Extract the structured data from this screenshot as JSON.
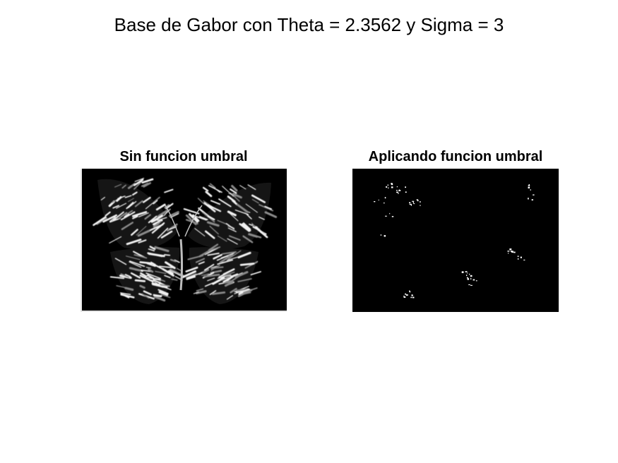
{
  "figure": {
    "title": "Base de Gabor con Theta = 2.3562 y Sigma = 3"
  },
  "panels": {
    "left": {
      "title": "Sin funcion umbral",
      "image": "gabor-filtered-butterfly"
    },
    "right": {
      "title": "Aplicando funcion umbral",
      "image": "thresholded-gabor-butterfly"
    }
  },
  "colors": {
    "background": "#ffffff",
    "image_background": "#000000",
    "edge_bright": "#ffffff",
    "edge_mid": "#9a9a9a"
  }
}
